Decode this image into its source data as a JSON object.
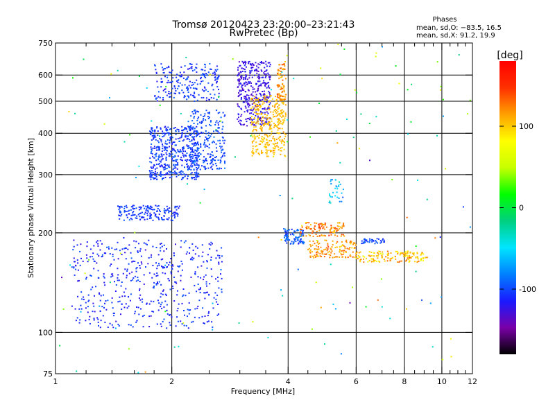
{
  "chart_data": {
    "type": "scatter",
    "title": "Tromsø 20120423 23:20:00–23:21:43",
    "subtitle": "RwPretec (Bp)",
    "xlabel": "Frequency [MHz]",
    "ylabel": "Stationary phase Virtual Height [km]",
    "x_scale": "log",
    "y_scale": "log",
    "xlim": [
      1,
      12
    ],
    "ylim": [
      75,
      750
    ],
    "x_ticks": [
      1,
      2,
      4,
      6,
      8,
      10,
      12
    ],
    "x_minor_ticks": [
      1.2,
      1.4,
      1.6,
      1.8,
      2.5,
      3,
      3.5,
      4.5,
      5,
      5.5,
      6.5,
      7,
      7.5,
      8.5,
      9,
      9.5,
      10.5,
      11,
      11.5
    ],
    "y_ticks": [
      75,
      100,
      200,
      300,
      400,
      500,
      600,
      750
    ],
    "grid": true,
    "phases_box": {
      "title": "Phases",
      "line_o": "mean, sd,O: −83.5, 16.5",
      "line_x": "mean, sd,X:  91.2, 19.9"
    },
    "colorbar": {
      "label": "[deg]",
      "range": [
        -180,
        180
      ],
      "ticks": [
        100,
        0,
        -100
      ],
      "colormap": [
        "#000000",
        "#7a00a8",
        "#1a1aff",
        "#0080ff",
        "#00e5ff",
        "#00d080",
        "#00ff00",
        "#c8ff00",
        "#ffff00",
        "#ffa000",
        "#ff3000",
        "#ff0000"
      ]
    },
    "clusters": [
      {
        "name": "",
        "x": [
          1.1,
          2.7
        ],
        "y": [
          103,
          190
        ],
        "phase": -110,
        "spread": 12,
        "n": 520
      },
      {
        "name": "",
        "x": [
          1.45,
          2.1
        ],
        "y": [
          218,
          242
        ],
        "phase": -105,
        "spread": 10,
        "n": 170
      },
      {
        "name": "",
        "x": [
          1.75,
          2.35
        ],
        "y": [
          290,
          420
        ],
        "phase": -105,
        "spread": 12,
        "n": 480
      },
      {
        "name": "",
        "x": [
          1.8,
          2.65
        ],
        "y": [
          500,
          650
        ],
        "phase": -105,
        "spread": 12,
        "n": 220
      },
      {
        "name": "",
        "x": [
          2.2,
          2.75
        ],
        "y": [
          310,
          470
        ],
        "phase": -100,
        "spread": 10,
        "n": 260
      },
      {
        "name": "",
        "x": [
          2.95,
          3.6
        ],
        "y": [
          420,
          660
        ],
        "phase": -125,
        "spread": 10,
        "n": 380
      },
      {
        "name": "",
        "x": [
          3.2,
          3.95
        ],
        "y": [
          340,
          520
        ],
        "phase": 105,
        "spread": 10,
        "n": 360
      },
      {
        "name": "",
        "x": [
          3.75,
          3.95
        ],
        "y": [
          500,
          660
        ],
        "phase": 120,
        "spread": 18,
        "n": 80
      },
      {
        "name": "",
        "x": [
          3.9,
          4.4
        ],
        "y": [
          185,
          205
        ],
        "phase": -95,
        "spread": 15,
        "n": 90
      },
      {
        "name": "",
        "x": [
          4.3,
          5.6
        ],
        "y": [
          195,
          215
        ],
        "phase": 125,
        "spread": 25,
        "n": 110
      },
      {
        "name": "",
        "x": [
          4.5,
          6.0
        ],
        "y": [
          168,
          190
        ],
        "phase": 115,
        "spread": 20,
        "n": 140
      },
      {
        "name": "",
        "x": [
          6.0,
          9.2
        ],
        "y": [
          163,
          176
        ],
        "phase": 100,
        "spread": 25,
        "n": 150
      },
      {
        "name": "",
        "x": [
          6.2,
          7.1
        ],
        "y": [
          185,
          192
        ],
        "phase": -100,
        "spread": 10,
        "n": 40
      },
      {
        "name": "",
        "x": [
          5.1,
          5.6
        ],
        "y": [
          245,
          290
        ],
        "phase": -60,
        "spread": 25,
        "n": 30
      },
      {
        "name": "",
        "x": [
          1.0,
          12.0
        ],
        "y": [
          75,
          750
        ],
        "phase": 0,
        "spread": 90,
        "n": 150
      }
    ]
  }
}
